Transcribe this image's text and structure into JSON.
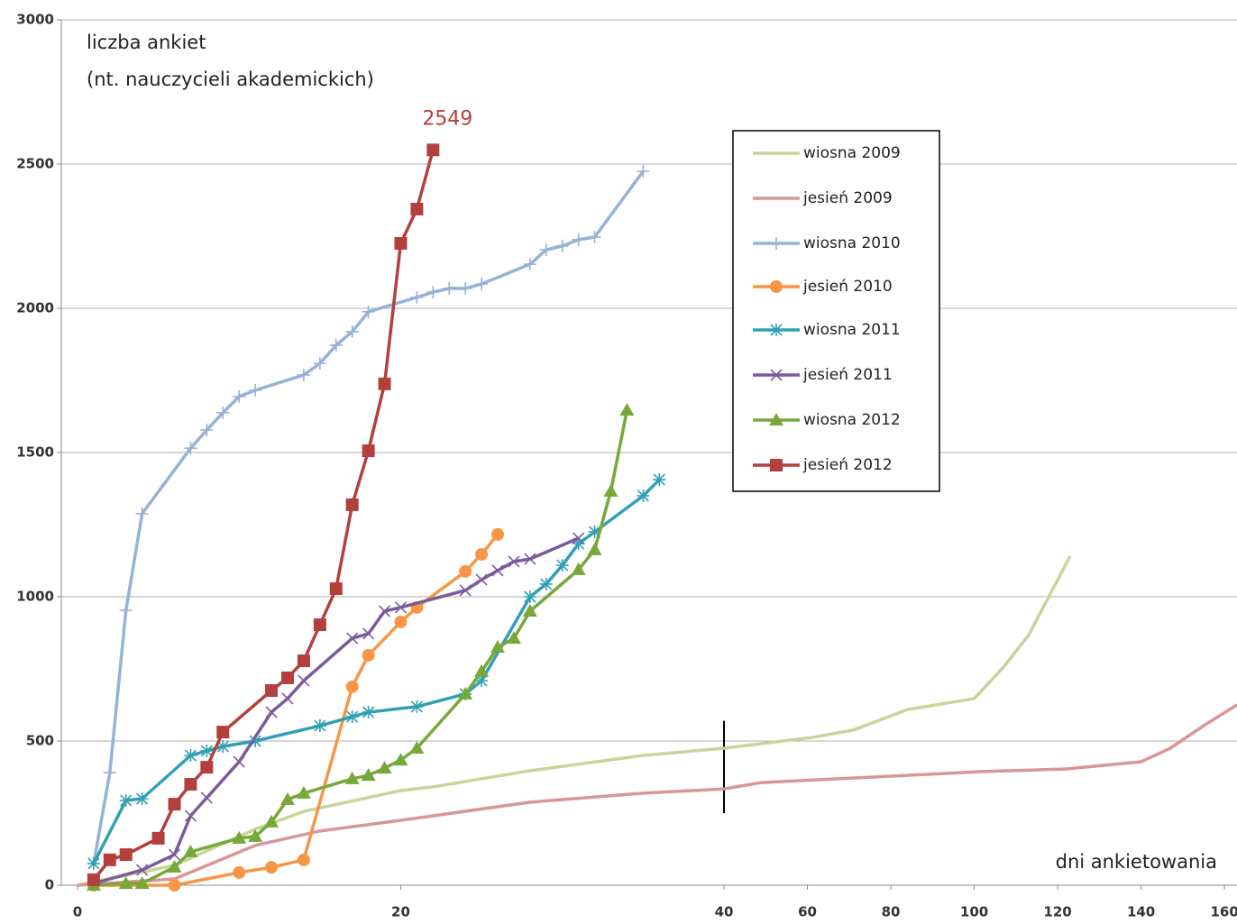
{
  "chart_data": {
    "type": "line",
    "y_label": [
      "liczba ankiet",
      "(nt. nauczycieli akademickich)"
    ],
    "x_label": "dni ankietowania",
    "xlim": [
      -1,
      163
    ],
    "x_break": 40,
    "xticks": [
      0,
      20,
      40,
      60,
      80,
      100,
      120,
      140,
      160
    ],
    "ylim": [
      0,
      3000
    ],
    "yticks": [
      0,
      500,
      1000,
      1500,
      2000,
      2500,
      3000
    ],
    "grid": true,
    "legend": "upper right",
    "series": [
      {
        "name": "wiosna 2009",
        "color": "#c4d69b",
        "marker": "none",
        "x": [
          0,
          6,
          11,
          14,
          20,
          22,
          28,
          35,
          40,
          49,
          61.5,
          71,
          84,
          100,
          107,
          113,
          123
        ],
        "values": [
          0,
          69,
          194,
          256,
          328,
          341,
          397,
          450,
          475,
          491,
          513,
          538,
          609,
          647,
          756,
          866,
          1141
        ]
      },
      {
        "name": "jesień 2009",
        "color": "#d99694",
        "marker": "none",
        "x": [
          0,
          6,
          11,
          15,
          20,
          28,
          35,
          40,
          49,
          84,
          102,
          122,
          140,
          147,
          155,
          163
        ],
        "values": [
          0,
          22,
          138,
          188,
          225,
          288,
          319,
          334,
          356,
          381,
          394,
          403,
          428,
          475,
          553,
          625
        ]
      },
      {
        "name": "wiosna 2010",
        "color": "#95b3d7",
        "marker": "plus",
        "x": [
          1,
          2,
          3,
          4,
          7,
          8,
          9,
          10,
          11,
          14,
          15,
          16,
          17,
          18,
          21,
          22,
          23,
          24,
          25,
          28,
          29,
          30,
          31,
          32,
          35
        ],
        "values": [
          75,
          390,
          953,
          1288,
          1515,
          1578,
          1638,
          1694,
          1716,
          1769,
          1809,
          1872,
          1919,
          1988,
          2038,
          2056,
          2069,
          2069,
          2084,
          2153,
          2203,
          2216,
          2238,
          2247,
          2475
        ]
      },
      {
        "name": "jesień 2010",
        "color": "#f79646",
        "marker": "circle",
        "x": [
          1,
          6,
          10,
          12,
          14,
          17,
          18,
          20,
          21,
          24,
          25,
          26
        ],
        "values": [
          0,
          0,
          44,
          62,
          88,
          688,
          797,
          913,
          963,
          1088,
          1147,
          1216
        ]
      },
      {
        "name": "wiosna 2011",
        "color": "#31a0b5",
        "marker": "star",
        "x": [
          1,
          3,
          4,
          7,
          8,
          9,
          11,
          15,
          17,
          18,
          21,
          24,
          25,
          28,
          29,
          30,
          31,
          32,
          35,
          36
        ],
        "values": [
          75,
          294,
          300,
          450,
          466,
          481,
          500,
          553,
          584,
          600,
          619,
          663,
          709,
          1000,
          1044,
          1109,
          1184,
          1225,
          1350,
          1406
        ]
      },
      {
        "name": "jesień 2011",
        "color": "#7a5c9e",
        "marker": "cross",
        "x": [
          1,
          4,
          6,
          7,
          8,
          10,
          12,
          13,
          14,
          17,
          18,
          19,
          20,
          24,
          25,
          26,
          27,
          28,
          31
        ],
        "values": [
          6,
          53,
          106,
          241,
          303,
          428,
          600,
          647,
          709,
          856,
          872,
          950,
          963,
          1022,
          1059,
          1091,
          1122,
          1131,
          1203
        ]
      },
      {
        "name": "wiosna 2012",
        "color": "#77a83a",
        "marker": "triangle",
        "x": [
          1,
          3,
          4,
          6,
          7,
          10,
          11,
          12,
          13,
          14,
          17,
          18,
          19,
          20,
          21,
          24,
          25,
          26,
          27,
          28,
          31,
          32,
          33,
          34
        ],
        "values": [
          0,
          6,
          6,
          63,
          116,
          163,
          169,
          219,
          297,
          319,
          369,
          381,
          406,
          434,
          475,
          663,
          741,
          825,
          856,
          950,
          1094,
          1163,
          1366,
          1647
        ]
      },
      {
        "name": "jesień 2012",
        "color": "#b3403d",
        "marker": "square",
        "annotate_last": true,
        "x": [
          1,
          2,
          3,
          5,
          6,
          7,
          8,
          9,
          12,
          13,
          14,
          15,
          16,
          17,
          18,
          19,
          20,
          21,
          22
        ],
        "values": [
          19,
          88,
          106,
          163,
          281,
          350,
          409,
          531,
          675,
          719,
          778,
          903,
          1028,
          1319,
          1506,
          1738,
          2225,
          2344,
          2549
        ]
      }
    ]
  }
}
